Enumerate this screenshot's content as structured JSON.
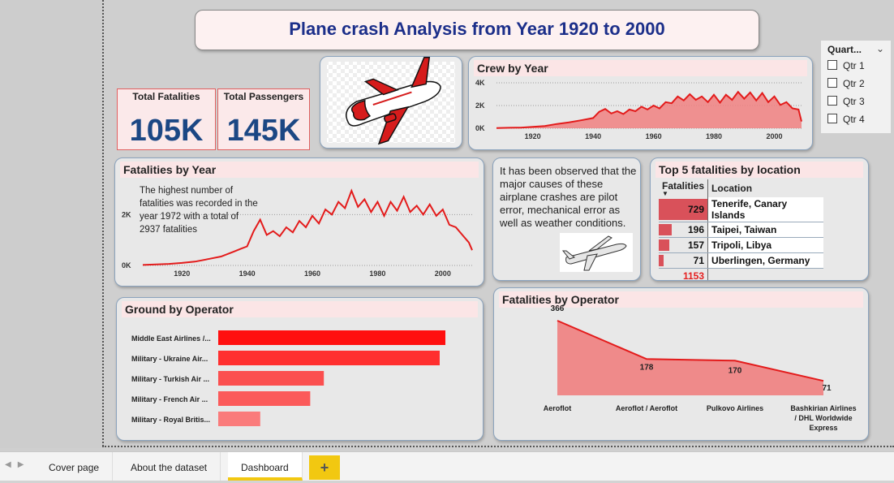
{
  "page_title": "Plane crash Analysis from Year 1920 to 2000",
  "kpis": {
    "fatalities_label": "Total Fatalities",
    "fatalities_value": "105K",
    "passengers_label": "Total Passengers",
    "passengers_value": "145K"
  },
  "slicer": {
    "header": "Quart...",
    "options": [
      "Qtr 1",
      "Qtr 2",
      "Qtr 3",
      "Qtr 4"
    ]
  },
  "crew_by_year": {
    "title": "Crew by Year",
    "y_ticks": [
      "4K",
      "2K",
      "0K"
    ],
    "x_ticks": [
      "1920",
      "1940",
      "1960",
      "1980",
      "2000"
    ]
  },
  "fatalities_by_year": {
    "title": "Fatalities by Year",
    "note": "The highest number of fatalities was recorded in the year 1972 with a total of  2937 fatalities",
    "y_ticks": [
      "2K",
      "0K"
    ],
    "x_ticks": [
      "1920",
      "1940",
      "1960",
      "1980",
      "2000"
    ]
  },
  "insight_text": "It has been observed that the major causes of these airplane crashes are pilot error, mechanical error as well as weather conditions.",
  "top5": {
    "title": "Top 5 fatalities by location",
    "col_fatalities": "Fatalities",
    "col_location": "Location",
    "rows": [
      {
        "value": "729",
        "location": "Tenerife, Canary Islands",
        "fraction": 1.0
      },
      {
        "value": "196",
        "location": "Taipei, Taiwan",
        "fraction": 0.27
      },
      {
        "value": "157",
        "location": "Tripoli, Libya",
        "fraction": 0.22
      },
      {
        "value": "71",
        "location": "Uberlingen, Germany",
        "fraction": 0.1
      }
    ],
    "total": "1153"
  },
  "ground_by_operator": {
    "title": "Ground by Operator"
  },
  "fatalities_by_operator": {
    "title": "Fatalities by Operator"
  },
  "tabs": {
    "items": [
      "Cover page",
      "About the dataset",
      "Dashboard"
    ],
    "add_label": "+"
  },
  "chart_data": [
    {
      "type": "area",
      "title": "Crew by Year",
      "x_range": [
        1908,
        2009
      ],
      "ylim": [
        0,
        4000
      ],
      "y_ticks": [
        0,
        2000,
        4000
      ],
      "x_ticks": [
        1920,
        1940,
        1960,
        1980,
        2000
      ],
      "series": [
        {
          "x": [
            1908,
            1912,
            1916,
            1920,
            1924,
            1928,
            1932,
            1936,
            1940,
            1942,
            1944,
            1946,
            1948,
            1950,
            1952,
            1954,
            1956,
            1958,
            1960,
            1962,
            1964,
            1966,
            1968,
            1970,
            1972,
            1974,
            1976,
            1978,
            1980,
            1982,
            1984,
            1986,
            1988,
            1990,
            1992,
            1994,
            1996,
            1998,
            2000,
            2002,
            2004,
            2006,
            2008,
            2009
          ],
          "y": [
            20,
            40,
            60,
            120,
            200,
            380,
            520,
            700,
            900,
            1450,
            1700,
            1300,
            1500,
            1250,
            1650,
            1500,
            1900,
            1650,
            2000,
            1750,
            2300,
            2200,
            2800,
            2450,
            3000,
            2500,
            2800,
            2300,
            2950,
            2250,
            2950,
            2500,
            3200,
            2600,
            3150,
            2450,
            3100,
            2300,
            2800,
            2050,
            2300,
            1750,
            1650,
            600
          ]
        }
      ]
    },
    {
      "type": "line",
      "title": "Fatalities by Year",
      "x_range": [
        1908,
        2009
      ],
      "ylim": [
        0,
        3000
      ],
      "y_ticks": [
        0,
        2000
      ],
      "x_ticks": [
        1920,
        1940,
        1960,
        1980,
        2000
      ],
      "series": [
        {
          "x": [
            1908,
            1912,
            1916,
            1920,
            1924,
            1928,
            1932,
            1936,
            1938,
            1940,
            1942,
            1944,
            1946,
            1948,
            1950,
            1952,
            1954,
            1956,
            1958,
            1960,
            1962,
            1964,
            1966,
            1968,
            1970,
            1972,
            1974,
            1976,
            1978,
            1980,
            1982,
            1984,
            1986,
            1988,
            1990,
            1992,
            1994,
            1996,
            1998,
            2000,
            2002,
            2004,
            2006,
            2008,
            2009
          ],
          "y": [
            20,
            40,
            60,
            100,
            150,
            250,
            350,
            550,
            650,
            750,
            1350,
            1800,
            1200,
            1350,
            1150,
            1500,
            1300,
            1750,
            1500,
            1950,
            1650,
            2200,
            2000,
            2500,
            2250,
            2937,
            2300,
            2600,
            2100,
            2500,
            1950,
            2500,
            2150,
            2700,
            2100,
            2350,
            2000,
            2400,
            1950,
            2200,
            1600,
            1500,
            1200,
            900,
            600
          ]
        }
      ]
    },
    {
      "type": "bar",
      "title": "Ground by Operator",
      "orientation": "horizontal",
      "categories": [
        "Middle East Airlines /...",
        "Military - Ukraine Air...",
        "Military - Turkish Air ...",
        "Military - French Air ...",
        "Military - Royal Britis..."
      ],
      "values": [
        100,
        97.5,
        46.5,
        40.5,
        18.5
      ],
      "colors": [
        "#ff0f0f",
        "#ff2f2f",
        "#fb4f4f",
        "#fb5a5a",
        "#fa7b7b"
      ]
    },
    {
      "type": "area",
      "title": "Fatalities by Operator",
      "categories": [
        "Aeroflot",
        "Aeroflot / Aeroflot",
        "Pulkovo Airlines",
        "Bashkirian Airlines / DHL Worldwide Express"
      ],
      "category_lines": [
        [
          "Aeroflot"
        ],
        [
          "Aeroflot / Aeroflot"
        ],
        [
          "Pulkovo Airlines"
        ],
        [
          "Bashkirian Airlines",
          "/ DHL Worldwide",
          "Express"
        ]
      ],
      "values": [
        366,
        178,
        170,
        71
      ],
      "data_labels": [
        "366",
        "178",
        "170",
        "71"
      ],
      "ylim": [
        0,
        366
      ]
    }
  ],
  "colors": {
    "accent_red": "#e31b1b",
    "area_fill": "#f08080",
    "title_blue": "#1c2f8a",
    "kpi_blue": "#1b4784",
    "panel_title_bg": "#fbe5e6",
    "tab_accent": "#f2c811"
  }
}
